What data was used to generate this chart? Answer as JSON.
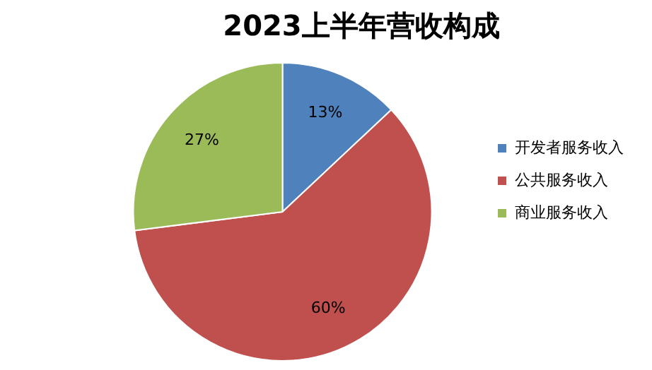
{
  "chart_data": {
    "type": "pie",
    "title": "2023上半年营收构成",
    "categories": [
      "开发者服务收入",
      "公共服务收入",
      "商业服务收入"
    ],
    "values": [
      13,
      60,
      27
    ],
    "colors": [
      "#4f81bd",
      "#c0504d",
      "#9bbb59"
    ],
    "value_labels": [
      "13%",
      "60%",
      "27%"
    ],
    "legend": "right"
  }
}
